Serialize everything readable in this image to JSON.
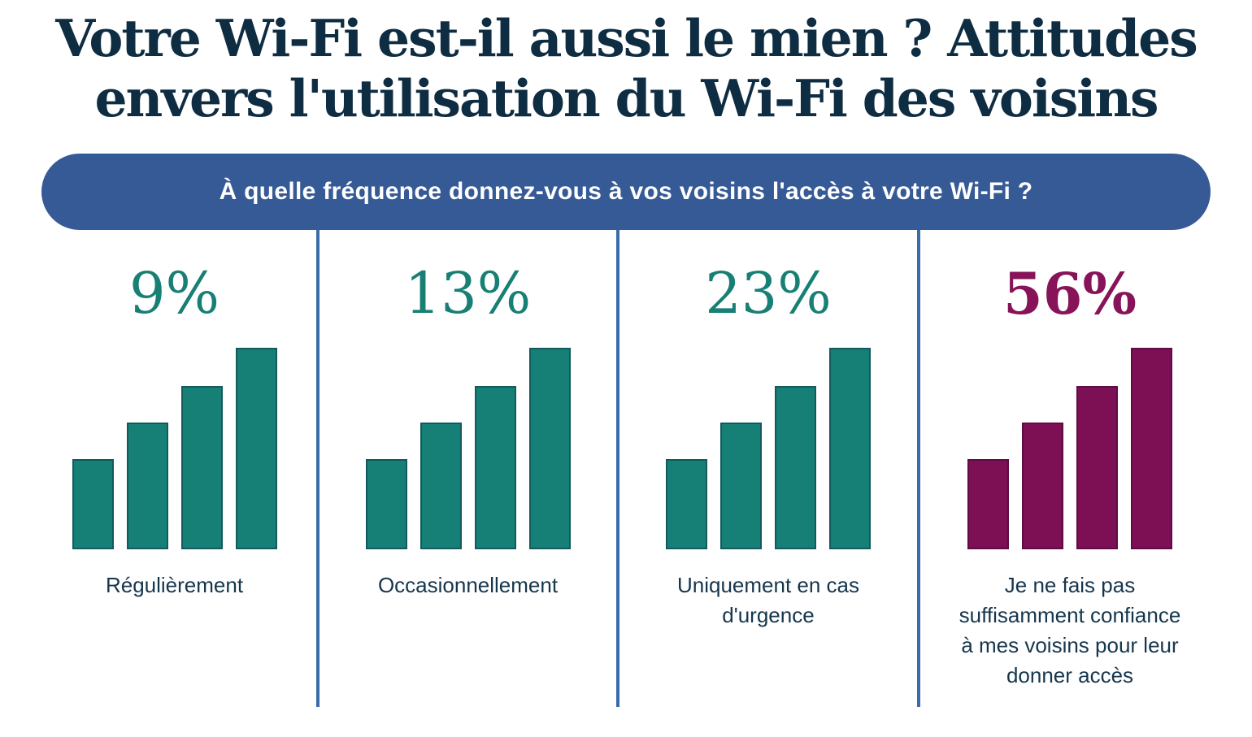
{
  "title": {
    "line1": "Votre Wi-Fi est-il aussi le mien ? Attitudes",
    "line2": "envers l'utilisation du Wi-Fi des voisins"
  },
  "question": "À quelle fréquence donnez-vous à vos voisins l'accès à votre Wi-Fi ?",
  "colors": {
    "navy": "#0E2C42",
    "navy_label": "#16364D",
    "banner_blue": "#365A96",
    "divider_blue": "#3A6CA8",
    "teal": "#177F74",
    "teal_bar": "#168076",
    "magenta_text": "#871458",
    "magenta_bar": "#7D0F55"
  },
  "columns": [
    {
      "percent": "9%",
      "label_lines": [
        "Régulièrement"
      ]
    },
    {
      "percent": "13%",
      "label_lines": [
        "Occasionnellement"
      ]
    },
    {
      "percent": "23%",
      "label_lines": [
        "Uniquement en cas",
        "d'urgence"
      ]
    },
    {
      "percent": "56%",
      "label_lines": [
        "Je ne fais pas",
        "suffisamment confiance",
        "à mes voisins pour leur",
        "donner accès"
      ]
    }
  ],
  "chart_data": {
    "type": "bar",
    "title": "Votre Wi-Fi est-il aussi le mien ? Attitudes envers l'utilisation du Wi-Fi des voisins",
    "subtitle": "À quelle fréquence donnez-vous à vos voisins l'accès à votre Wi-Fi ?",
    "categories": [
      "Régulièrement",
      "Occasionnellement",
      "Uniquement en cas d'urgence",
      "Je ne fais pas suffisamment confiance à mes voisins pour leur donner accès"
    ],
    "values": [
      9,
      13,
      23,
      56
    ],
    "unit": "%",
    "value_labels": [
      "9%",
      "13%",
      "23%",
      "56%"
    ],
    "bar_colors": [
      "#168076",
      "#168076",
      "#168076",
      "#7D0F55"
    ],
    "decorative_sparkline_heights_pct": [
      45,
      63,
      81,
      100
    ],
    "legend": "none",
    "grid": "off",
    "xlabel": "",
    "ylabel": ""
  }
}
